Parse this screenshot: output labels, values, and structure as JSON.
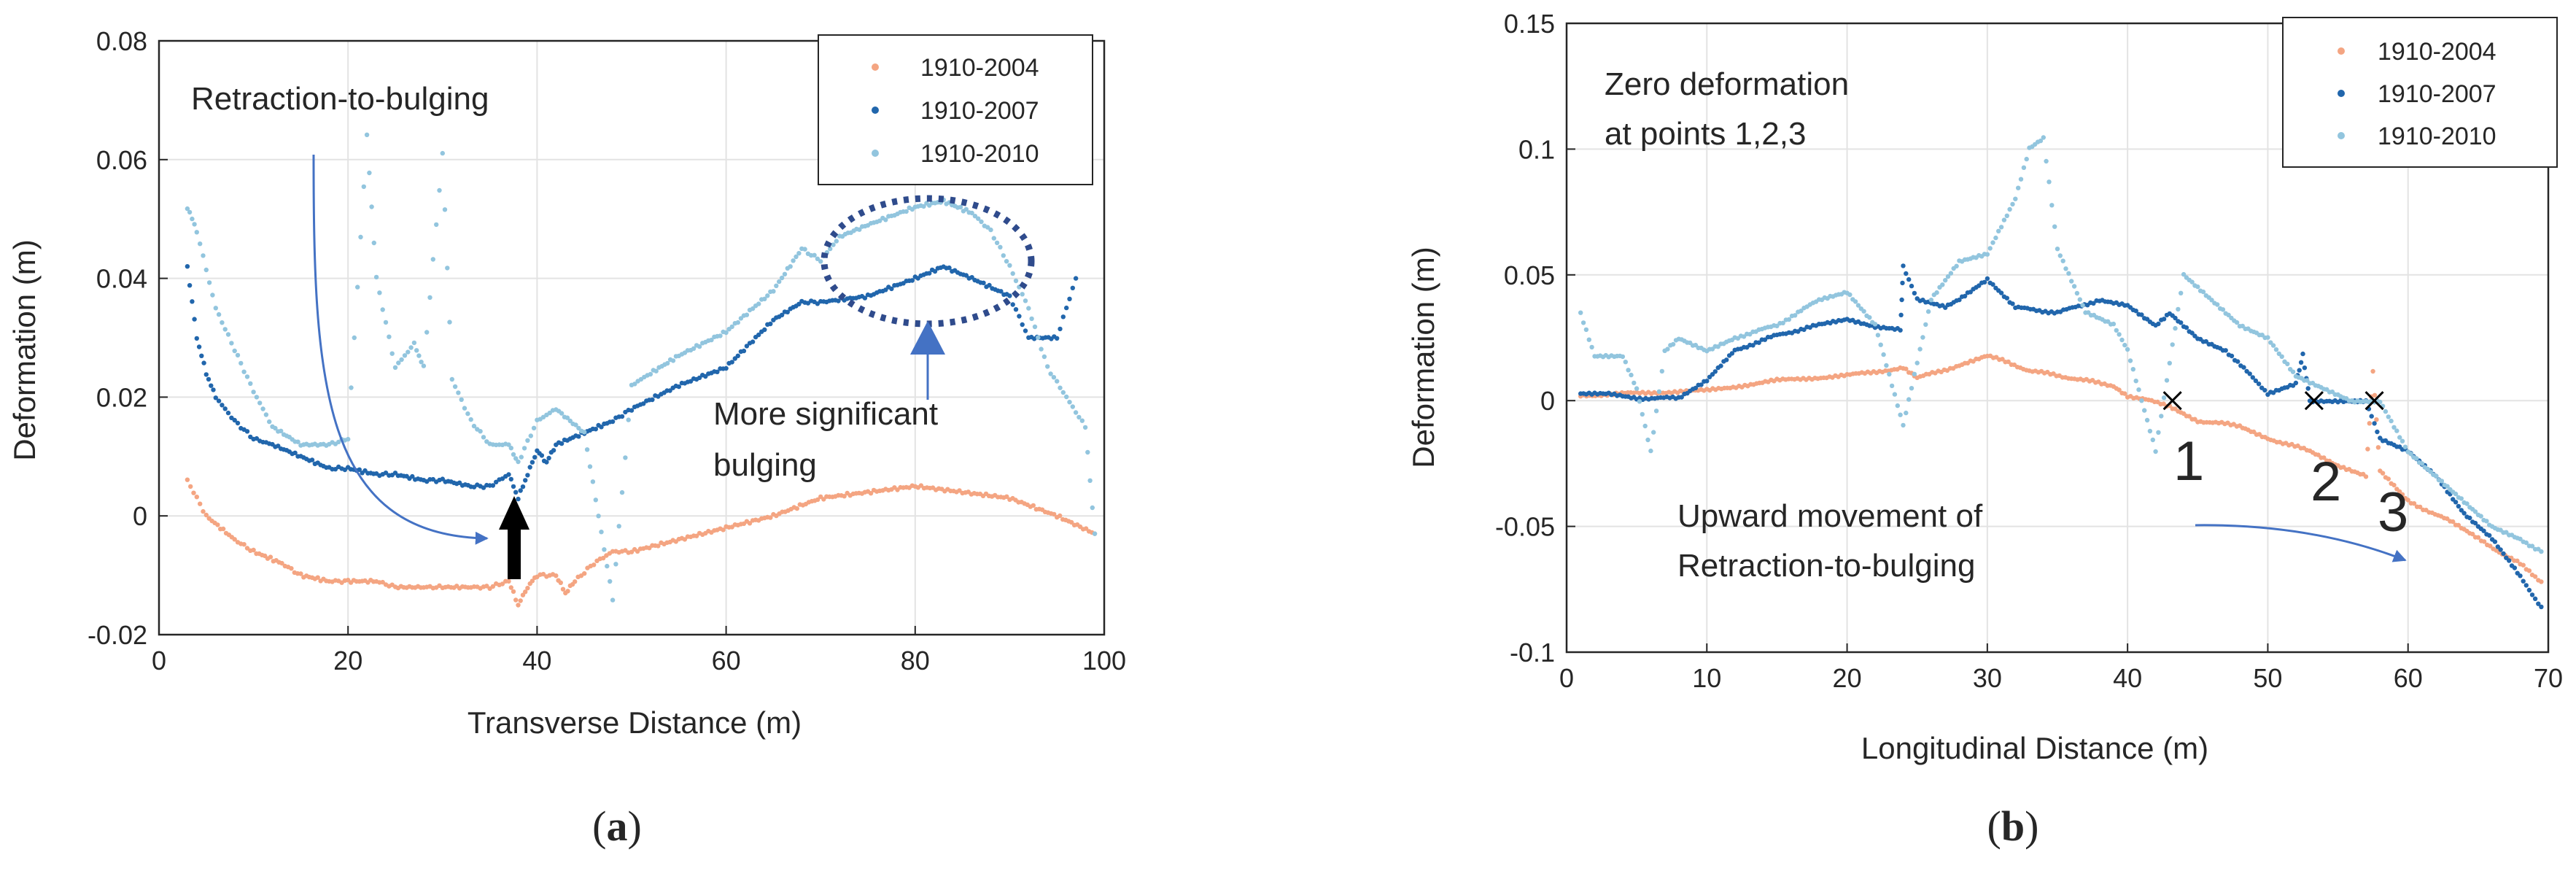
{
  "colors": {
    "s2004": "#f4a582",
    "s2007": "#2166ac",
    "s2010": "#92c5de",
    "arrow_blue": "#4472c4",
    "circle": "#2f4b8c",
    "black": "#000000"
  },
  "chart_data": [
    {
      "id": "a",
      "type": "scatter",
      "caption_open": "(",
      "caption_letter": "a",
      "caption_close": ")",
      "title": "",
      "xlabel": "Transverse Distance (m)",
      "ylabel": "Deformation (m)",
      "xlim": [
        0,
        100
      ],
      "ylim": [
        -0.02,
        0.08
      ],
      "xticks": [
        0,
        20,
        40,
        60,
        80,
        100
      ],
      "xtick_labels": [
        "0",
        "20",
        "40",
        "60",
        "80",
        "100"
      ],
      "yticks": [
        -0.02,
        0,
        0.02,
        0.04,
        0.06,
        0.08
      ],
      "ytick_labels": [
        "-0.02",
        "0",
        "0.02",
        "0.04",
        "0.06",
        "0.08"
      ],
      "grid": true,
      "legend_position": "top-right",
      "series": [
        {
          "name": "1910-2004",
          "color_key": "s2004",
          "x": [
            3,
            5,
            8,
            10,
            13,
            15,
            18,
            20,
            23,
            25,
            28,
            30,
            33,
            35,
            37,
            38,
            39,
            40,
            42,
            43,
            44,
            46,
            48,
            50,
            55,
            60,
            65,
            70,
            75,
            80,
            85,
            90,
            95,
            99
          ],
          "y": [
            0.006,
            0.0,
            -0.004,
            -0.006,
            -0.008,
            -0.01,
            -0.011,
            -0.011,
            -0.011,
            -0.012,
            -0.012,
            -0.012,
            -0.012,
            -0.012,
            -0.011,
            -0.015,
            -0.012,
            -0.01,
            -0.01,
            -0.013,
            -0.011,
            -0.008,
            -0.006,
            -0.006,
            -0.004,
            -0.002,
            0.0,
            0.003,
            0.004,
            0.005,
            0.004,
            0.003,
            0.0,
            -0.003
          ]
        },
        {
          "name": "1910-2007",
          "color_key": "s2007",
          "x": [
            3,
            4,
            5,
            6,
            8,
            10,
            12,
            15,
            18,
            20,
            23,
            25,
            28,
            30,
            33,
            35,
            37,
            38,
            39,
            40,
            41,
            42,
            45,
            48,
            50,
            55,
            60,
            65,
            68,
            70,
            75,
            80,
            83,
            86,
            90,
            92,
            95,
            97
          ],
          "y": [
            0.042,
            0.03,
            0.024,
            0.02,
            0.016,
            0.013,
            0.012,
            0.01,
            0.008,
            0.008,
            0.007,
            0.007,
            0.006,
            0.006,
            0.005,
            0.005,
            0.007,
            0.003,
            0.007,
            0.011,
            0.009,
            0.012,
            0.014,
            0.016,
            0.018,
            0.022,
            0.025,
            0.033,
            0.036,
            0.036,
            0.037,
            0.04,
            0.042,
            0.04,
            0.037,
            0.03,
            0.03,
            0.04
          ]
        },
        {
          "name": "1910-2010",
          "color_key": "s2010",
          "x": [
            3,
            4,
            6,
            8,
            10,
            12,
            15,
            18,
            20,
            22,
            23,
            25,
            27,
            28,
            30,
            31,
            33,
            35,
            37,
            38,
            40,
            42,
            45,
            48,
            50,
            52,
            55,
            60,
            65,
            68,
            70,
            72,
            75,
            80,
            83,
            86,
            88,
            90,
            92,
            94,
            96,
            98,
            99
          ],
          "y": [
            0.052,
            0.048,
            0.035,
            0.028,
            0.021,
            0.015,
            0.012,
            0.012,
            0.013,
            0.064,
            0.04,
            0.025,
            0.029,
            0.025,
            0.061,
            0.023,
            0.016,
            0.012,
            0.012,
            0.009,
            0.016,
            0.018,
            0.014,
            -0.014,
            0.022,
            0.024,
            0.027,
            0.031,
            0.038,
            0.045,
            0.043,
            0.047,
            0.049,
            0.052,
            0.053,
            0.051,
            0.048,
            0.042,
            0.035,
            0.025,
            0.02,
            0.015,
            -0.003
          ]
        }
      ],
      "annotations": [
        {
          "key": "ret",
          "text": "Retraction-to-bulging"
        },
        {
          "key": "sig1",
          "text": "More significant"
        },
        {
          "key": "sig2",
          "text": "bulging"
        }
      ]
    },
    {
      "id": "b",
      "type": "scatter",
      "caption_open": "(",
      "caption_letter": "b",
      "caption_close": ")",
      "title": "",
      "xlabel": "Longitudinal Distance (m)",
      "ylabel": "Deformation (m)",
      "xlim": [
        0,
        70
      ],
      "ylim": [
        -0.1,
        0.15
      ],
      "xticks": [
        0,
        10,
        20,
        30,
        40,
        50,
        60,
        70
      ],
      "xtick_labels": [
        "0",
        "10",
        "20",
        "30",
        "40",
        "50",
        "60",
        "70"
      ],
      "yticks": [
        -0.1,
        -0.05,
        0,
        0.05,
        0.1,
        0.15
      ],
      "ytick_labels": [
        "-0.1",
        "-0.05",
        "0",
        "0.05",
        "0.1",
        "0.15"
      ],
      "grid": true,
      "legend_position": "top-right",
      "series": [
        {
          "name": "1910-2004",
          "color_key": "s2004",
          "x": [
            1,
            5,
            10,
            15,
            20,
            24,
            25,
            28,
            30,
            33,
            36,
            39,
            40,
            43,
            45,
            48,
            50,
            53,
            55,
            57,
            57.5,
            58,
            60,
            63,
            65,
            68,
            69.5
          ],
          "y": [
            0.002,
            0.003,
            0.004,
            0.008,
            0.01,
            0.013,
            0.009,
            0.014,
            0.018,
            0.012,
            0.009,
            0.006,
            0.002,
            -0.002,
            -0.008,
            -0.01,
            -0.015,
            -0.02,
            -0.026,
            -0.03,
            0.012,
            -0.028,
            -0.04,
            -0.048,
            -0.055,
            -0.065,
            -0.072
          ]
        },
        {
          "name": "1910-2007",
          "color_key": "s2007",
          "x": [
            1,
            3,
            5,
            8,
            10,
            12,
            15,
            18,
            20,
            22,
            23.8,
            24,
            25,
            27,
            28,
            30,
            32,
            35,
            38,
            40,
            42,
            43,
            45,
            47,
            50,
            52,
            52.5,
            53,
            55,
            57,
            58,
            60,
            62,
            64,
            66,
            68,
            69.5
          ],
          "y": [
            0.003,
            0.003,
            0.001,
            0.001,
            0.008,
            0.02,
            0.026,
            0.03,
            0.032,
            0.029,
            0.028,
            0.053,
            0.04,
            0.037,
            0.04,
            0.048,
            0.037,
            0.035,
            0.04,
            0.038,
            0.03,
            0.035,
            0.025,
            0.02,
            0.003,
            0.007,
            0.018,
            0.0,
            0.0,
            0.0,
            -0.015,
            -0.02,
            -0.03,
            -0.045,
            -0.055,
            -0.07,
            -0.082
          ]
        },
        {
          "name": "1910-2010",
          "color_key": "s2010",
          "x": [
            1,
            2,
            4,
            5,
            6,
            7,
            8,
            10,
            12,
            15,
            18,
            20,
            22,
            24,
            26,
            28,
            30,
            32,
            33,
            34,
            35,
            37,
            39,
            40,
            42,
            44,
            46,
            48,
            50,
            52,
            54,
            56,
            58,
            60,
            62,
            64,
            66,
            68,
            69.5
          ],
          "y": [
            0.035,
            0.018,
            0.018,
            0.005,
            -0.02,
            0.02,
            0.025,
            0.02,
            0.025,
            0.03,
            0.04,
            0.043,
            0.03,
            -0.01,
            0.04,
            0.055,
            0.058,
            0.08,
            0.1,
            0.104,
            0.06,
            0.035,
            0.03,
            0.02,
            -0.02,
            0.05,
            0.04,
            0.03,
            0.025,
            0.01,
            0.005,
            0.0,
            0.0,
            -0.02,
            -0.03,
            -0.04,
            -0.05,
            -0.055,
            -0.06
          ]
        }
      ],
      "annotations": [
        {
          "key": "zero1",
          "text": "Zero deformation"
        },
        {
          "key": "zero2",
          "text": "at points 1,2,3"
        },
        {
          "key": "up1",
          "text": "Upward movement of"
        },
        {
          "key": "up2",
          "text": "Retraction-to-bulging"
        }
      ],
      "markers": [
        {
          "label": "1",
          "x": 43.2,
          "y": 0.0
        },
        {
          "label": "2",
          "x": 53.3,
          "y": 0.0
        },
        {
          "label": "3",
          "x": 57.6,
          "y": 0.0
        }
      ]
    }
  ]
}
